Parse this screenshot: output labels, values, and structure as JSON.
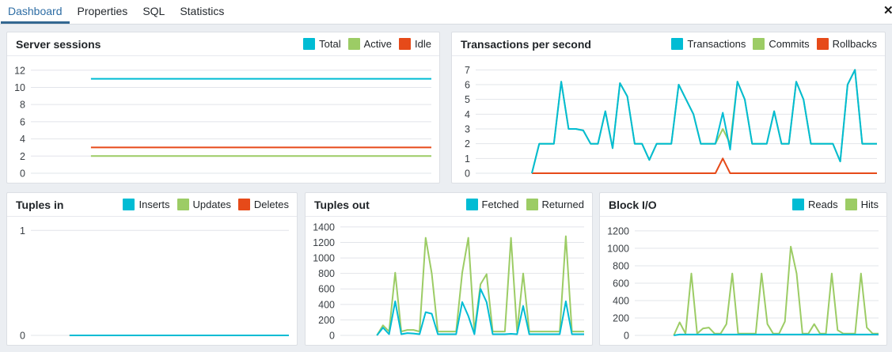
{
  "tabs": {
    "items": [
      {
        "label": "Dashboard",
        "active": true
      },
      {
        "label": "Properties",
        "active": false
      },
      {
        "label": "SQL",
        "active": false
      },
      {
        "label": "Statistics",
        "active": false
      }
    ]
  },
  "icons": {
    "close": "✕"
  },
  "colors": {
    "cyan": "#00BCD4",
    "green": "#9CCC65",
    "red": "#E64A19",
    "tab_active_text": "#2e6da4",
    "tab_underline": "#336791"
  },
  "panels": [
    {
      "title": "Server sessions",
      "legend": [
        {
          "label": "Total",
          "color": "#00BCD4"
        },
        {
          "label": "Active",
          "color": "#9CCC65"
        },
        {
          "label": "Idle",
          "color": "#E64A19"
        }
      ],
      "chart_data": {
        "type": "line",
        "yticks": [
          0,
          2,
          4,
          6,
          8,
          10,
          12
        ],
        "ymax": 12.9,
        "x_start_frac": 0.15,
        "grid": "horizontal",
        "series": [
          {
            "name": "Active",
            "color": "#9CCC65",
            "values": [
              2,
              2
            ]
          },
          {
            "name": "Idle",
            "color": "#E64A19",
            "values": [
              3,
              3
            ]
          },
          {
            "name": "Total",
            "color": "#00BCD4",
            "values": [
              11,
              11
            ]
          }
        ]
      }
    },
    {
      "title": "Transactions per second",
      "legend": [
        {
          "label": "Transactions",
          "color": "#00BCD4"
        },
        {
          "label": "Commits",
          "color": "#9CCC65"
        },
        {
          "label": "Rollbacks",
          "color": "#E64A19"
        }
      ],
      "chart_data": {
        "type": "line",
        "yticks": [
          0,
          1,
          2,
          3,
          4,
          5,
          6,
          7
        ],
        "ymax": 7.5,
        "x_start_frac": 0.14,
        "grid": "horizontal",
        "series": [
          {
            "name": "Commits",
            "color": "#9CCC65",
            "values": [
              0,
              2,
              2,
              2,
              6.2,
              3,
              3,
              2.9,
              2,
              2,
              4.2,
              1.7,
              6.1,
              5.2,
              2,
              2,
              0.9,
              2,
              2,
              2,
              6,
              5,
              4,
              2,
              2,
              2,
              3,
              2,
              6.2,
              5,
              2,
              2,
              2,
              4.2,
              2,
              2,
              6.2,
              5,
              2,
              2,
              2,
              2,
              0.8,
              6,
              7,
              2,
              2,
              2
            ]
          },
          {
            "name": "Rollbacks",
            "color": "#E64A19",
            "values": [
              0,
              0,
              0,
              0,
              0,
              0,
              0,
              0,
              0,
              0,
              0,
              0,
              0,
              0,
              0,
              0,
              0,
              0,
              0,
              0,
              0,
              0,
              0,
              0,
              0,
              0,
              1,
              0,
              0,
              0,
              0,
              0,
              0,
              0,
              0,
              0,
              0,
              0,
              0,
              0,
              0,
              0,
              0,
              0,
              0,
              0,
              0,
              0
            ]
          },
          {
            "name": "Transactions",
            "color": "#00BCD4",
            "values": [
              0,
              2,
              2,
              2,
              6.2,
              3,
              3,
              2.9,
              2,
              2,
              4.2,
              1.7,
              6.1,
              5.2,
              2,
              2,
              0.9,
              2,
              2,
              2,
              6,
              5,
              4,
              2,
              2,
              2,
              4.1,
              1.6,
              6.2,
              5,
              2,
              2,
              2,
              4.2,
              2,
              2,
              6.2,
              5,
              2,
              2,
              2,
              2,
              0.8,
              6,
              7,
              2,
              2,
              2
            ]
          }
        ]
      }
    },
    {
      "title": "Tuples in",
      "legend": [
        {
          "label": "Inserts",
          "color": "#00BCD4"
        },
        {
          "label": "Updates",
          "color": "#9CCC65"
        },
        {
          "label": "Deletes",
          "color": "#E64A19"
        }
      ],
      "chart_data": {
        "type": "line",
        "yticks": [
          0,
          1
        ],
        "ymax": 1.07,
        "x_start_frac": 0.15,
        "grid": "horizontal",
        "series": [
          {
            "name": "Deletes",
            "color": "#E64A19",
            "values": [
              0,
              0
            ]
          },
          {
            "name": "Updates",
            "color": "#9CCC65",
            "values": [
              0,
              0
            ]
          },
          {
            "name": "Inserts",
            "color": "#00BCD4",
            "values": [
              0,
              0
            ]
          }
        ]
      }
    },
    {
      "title": "Tuples out",
      "legend": [
        {
          "label": "Fetched",
          "color": "#00BCD4"
        },
        {
          "label": "Returned",
          "color": "#9CCC65"
        }
      ],
      "chart_data": {
        "type": "line",
        "yticks": [
          0,
          200,
          400,
          600,
          800,
          1000,
          1200,
          1400
        ],
        "ymax": 1450,
        "x_start_frac": 0.15,
        "grid": "horizontal",
        "series": [
          {
            "name": "Returned",
            "color": "#9CCC65",
            "values": [
              0,
              130,
              50,
              810,
              50,
              70,
              70,
              50,
              1260,
              800,
              50,
              50,
              50,
              50,
              810,
              1260,
              50,
              660,
              790,
              50,
              50,
              50,
              1260,
              50,
              800,
              50,
              50,
              50,
              50,
              50,
              50,
              1280,
              50,
              50,
              50
            ]
          },
          {
            "name": "Fetched",
            "color": "#00BCD4",
            "values": [
              0,
              100,
              15,
              440,
              15,
              30,
              25,
              15,
              300,
              280,
              15,
              15,
              15,
              15,
              430,
              250,
              15,
              600,
              430,
              15,
              15,
              15,
              20,
              15,
              380,
              15,
              15,
              15,
              15,
              15,
              15,
              440,
              15,
              15,
              15
            ]
          }
        ]
      }
    },
    {
      "title": "Block I/O",
      "legend": [
        {
          "label": "Reads",
          "color": "#00BCD4"
        },
        {
          "label": "Hits",
          "color": "#9CCC65"
        }
      ],
      "chart_data": {
        "type": "line",
        "yticks": [
          0,
          200,
          400,
          600,
          800,
          1000,
          1200
        ],
        "ymax": 1290,
        "x_start_frac": 0.16,
        "grid": "horizontal",
        "series": [
          {
            "name": "Hits",
            "color": "#9CCC65",
            "values": [
              0,
              150,
              20,
              710,
              20,
              80,
              90,
              20,
              20,
              130,
              710,
              20,
              20,
              20,
              20,
              710,
              130,
              20,
              20,
              160,
              1020,
              710,
              20,
              20,
              130,
              20,
              20,
              710,
              60,
              20,
              20,
              20,
              710,
              90,
              20,
              20
            ]
          },
          {
            "name": "Reads",
            "color": "#00BCD4",
            "values": [
              0,
              10,
              10,
              10,
              10,
              10,
              10,
              10,
              10,
              10,
              10,
              10,
              10,
              10,
              10,
              10,
              10,
              10,
              10,
              10,
              10,
              10,
              10,
              10,
              10,
              10,
              10,
              10,
              10,
              10,
              10,
              10,
              10,
              10,
              10,
              10
            ]
          }
        ]
      }
    }
  ]
}
